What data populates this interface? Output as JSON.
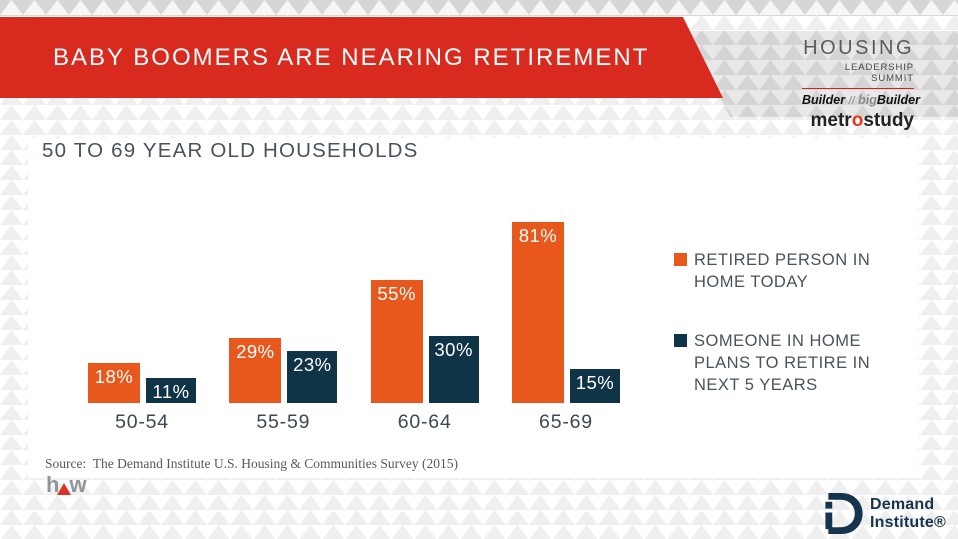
{
  "slide": {
    "title": "BABY BOOMERS ARE NEARING RETIREMENT",
    "subtitle": "50 TO 69 YEAR OLD HOUSEHOLDS",
    "source": "Source:  The Demand Institute U.S. Housing & Communities Survey (2015)"
  },
  "header_logos": {
    "summit_line1": "HOUSING",
    "summit_line2": "LEADERSHIP SUMMIT",
    "builder": {
      "part1": "Builder",
      "sep": "//",
      "big": "big",
      "part2": "Builder"
    },
    "metrostudy": {
      "pre": "metr",
      "o": "o",
      "post": "study"
    }
  },
  "chart_data": {
    "type": "bar",
    "title": "50 TO 69 YEAR OLD HOUSEHOLDS",
    "categories": [
      "50-54",
      "55-59",
      "60-64",
      "65-69"
    ],
    "series": [
      {
        "name": "RETIRED PERSON IN HOME TODAY",
        "values": [
          18,
          29,
          55,
          81
        ],
        "color": "#E8581C"
      },
      {
        "name": "SOMEONE IN HOME PLANS TO RETIRE IN NEXT 5 YEARS",
        "values": [
          11,
          23,
          30,
          15
        ],
        "color": "#0F3447"
      }
    ],
    "value_suffix": "%",
    "xlabel": "",
    "ylabel": "",
    "ylim": [
      0,
      100
    ],
    "grid": false,
    "value_labels": "inside-top",
    "legend_position": "right"
  },
  "footer": {
    "hw_logo": {
      "h": "h",
      "w": "w"
    },
    "demand_institute": {
      "line1": "Demand",
      "line2": "Institute®"
    }
  },
  "colors": {
    "banner_red": "#D92A1F",
    "bar_orange": "#E8581C",
    "bar_navy": "#0F3447",
    "summit_underline_red": "#C5281C",
    "metrostudy_o_red": "#E8391D",
    "hw_triangle_red": "#E03127",
    "demand_institute_navy": "#16344C",
    "text_dark": "#4A525C"
  }
}
